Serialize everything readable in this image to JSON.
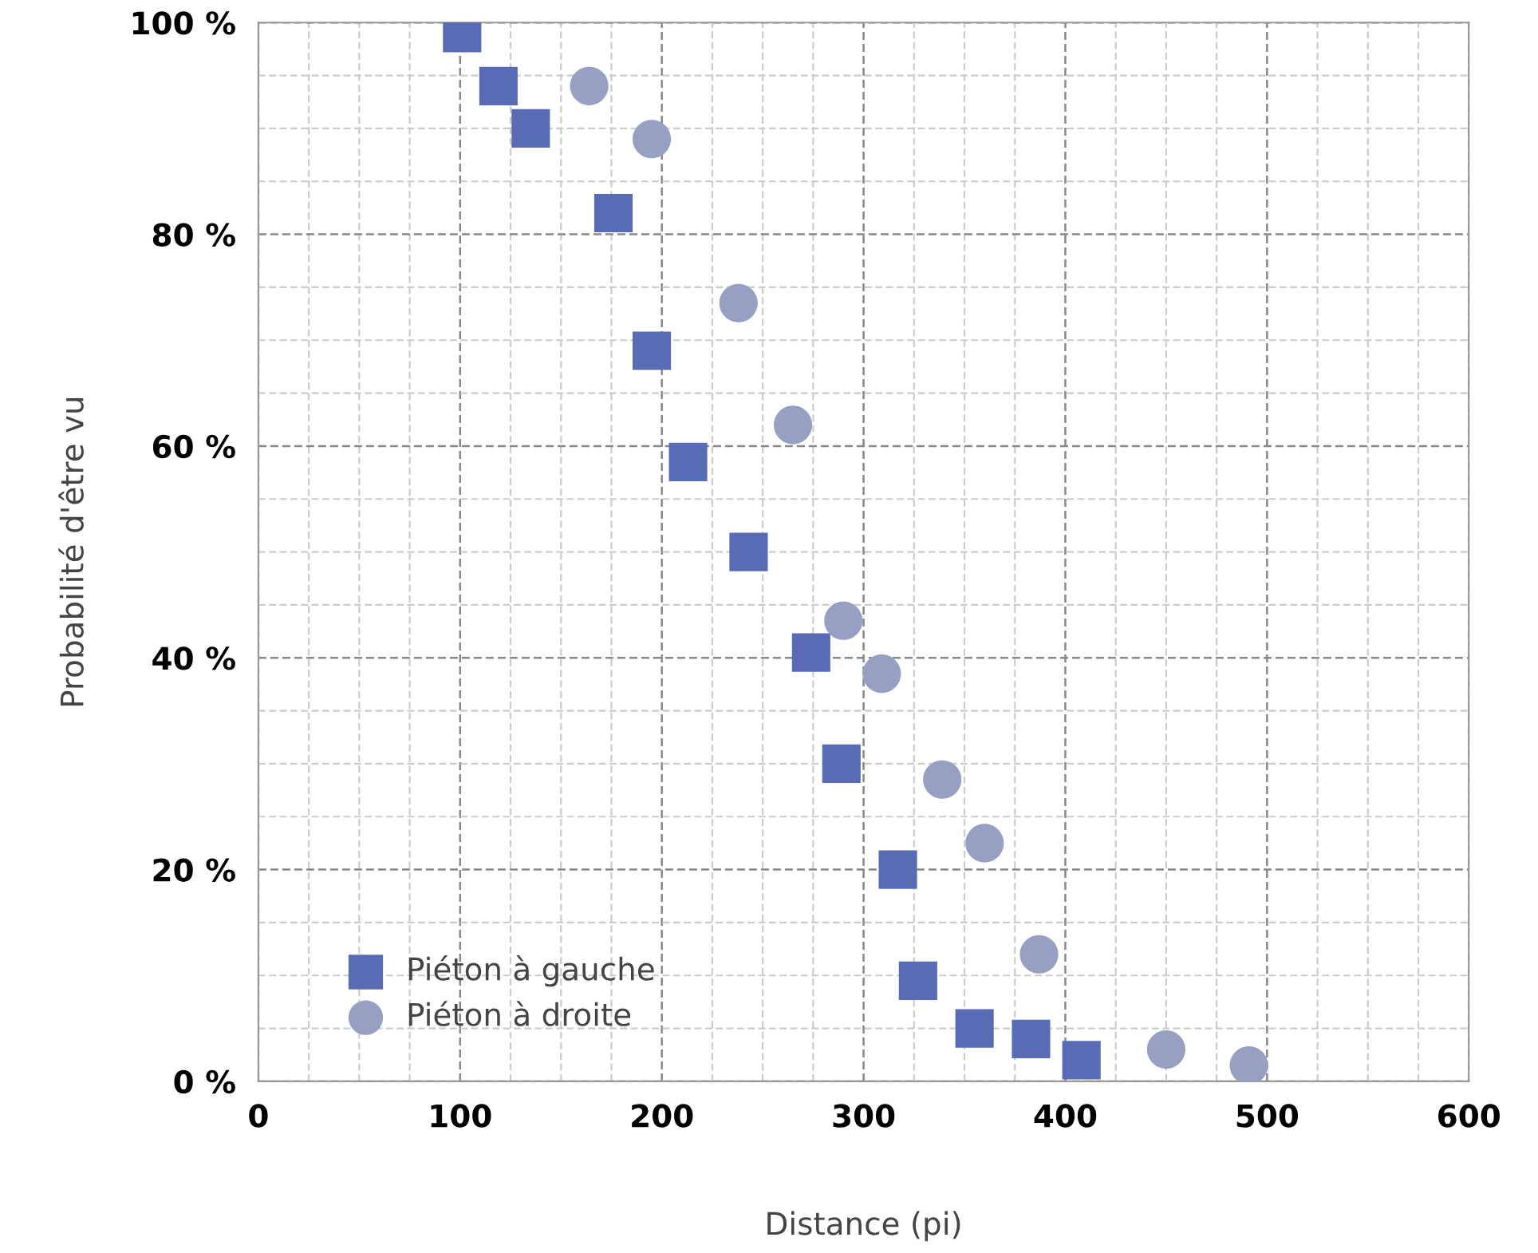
{
  "chart_data": {
    "type": "scatter",
    "xlabel": "Distance (pi)",
    "ylabel": "Probabilité d'être vu",
    "xlim": [
      0,
      600
    ],
    "ylim": [
      0,
      100
    ],
    "xticks": [
      0,
      100,
      200,
      300,
      400,
      500,
      600
    ],
    "yticks": [
      {
        "value": 0,
        "label": "0 %"
      },
      {
        "value": 20,
        "label": "20 %"
      },
      {
        "value": 40,
        "label": "40 %"
      },
      {
        "value": 60,
        "label": "60 %"
      },
      {
        "value": 80,
        "label": "80 %"
      },
      {
        "value": 100,
        "label": "100 %"
      }
    ],
    "grid": true,
    "legend": "bottom left",
    "series": [
      {
        "name": "Piéton à gauche",
        "color": "#5a6bb6",
        "marker": "square",
        "x": [
          101,
          119,
          135,
          176,
          195,
          213,
          243,
          274,
          289,
          317,
          327,
          355,
          383,
          408
        ],
        "values": [
          99,
          94,
          90,
          82,
          69,
          58.5,
          50,
          40.5,
          30,
          20,
          9.5,
          5,
          4,
          2
        ]
      },
      {
        "name": "Piéton à droite",
        "color": "#97a0c3",
        "marker": "circle",
        "x": [
          164,
          195,
          238,
          265,
          290,
          309,
          339,
          360,
          387,
          450,
          491
        ],
        "values": [
          94,
          89,
          73.5,
          62,
          43.5,
          38.5,
          28.5,
          22.5,
          12,
          3,
          1.5
        ]
      }
    ]
  }
}
